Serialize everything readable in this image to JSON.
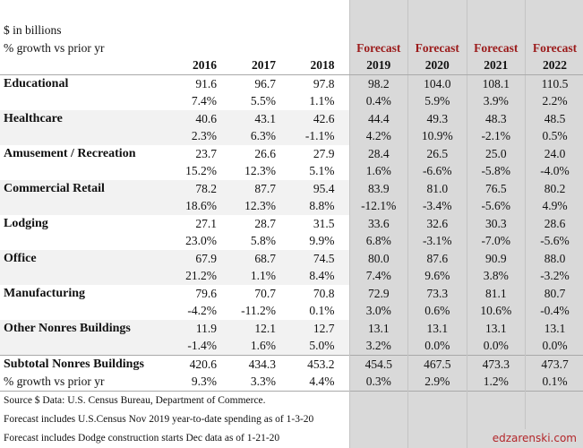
{
  "header": {
    "unit_label": "$ in billions",
    "growth_label": "% growth vs prior yr",
    "forecast_label": "Forecast",
    "years": [
      "2016",
      "2017",
      "2018",
      "2019",
      "2020",
      "2021",
      "2022"
    ],
    "forecast_years": [
      "2019",
      "2020",
      "2021",
      "2022"
    ]
  },
  "categories": [
    {
      "name": "Educational",
      "values": [
        "91.6",
        "96.7",
        "97.8",
        "98.2",
        "104.0",
        "108.1",
        "110.5"
      ],
      "growth": [
        "7.4%",
        "5.5%",
        "1.1%",
        "0.4%",
        "5.9%",
        "3.9%",
        "2.2%"
      ]
    },
    {
      "name": "Healthcare",
      "values": [
        "40.6",
        "43.1",
        "42.6",
        "44.4",
        "49.3",
        "48.3",
        "48.5"
      ],
      "growth": [
        "2.3%",
        "6.3%",
        "-1.1%",
        "4.2%",
        "10.9%",
        "-2.1%",
        "0.5%"
      ]
    },
    {
      "name": "Amusement / Recreation",
      "values": [
        "23.7",
        "26.6",
        "27.9",
        "28.4",
        "26.5",
        "25.0",
        "24.0"
      ],
      "growth": [
        "15.2%",
        "12.3%",
        "5.1%",
        "1.6%",
        "-6.6%",
        "-5.8%",
        "-4.0%"
      ]
    },
    {
      "name": "Commercial Retail",
      "values": [
        "78.2",
        "87.7",
        "95.4",
        "83.9",
        "81.0",
        "76.5",
        "80.2"
      ],
      "growth": [
        "18.6%",
        "12.3%",
        "8.8%",
        "-12.1%",
        "-3.4%",
        "-5.6%",
        "4.9%"
      ]
    },
    {
      "name": "Lodging",
      "values": [
        "27.1",
        "28.7",
        "31.5",
        "33.6",
        "32.6",
        "30.3",
        "28.6"
      ],
      "growth": [
        "23.0%",
        "5.8%",
        "9.9%",
        "6.8%",
        "-3.1%",
        "-7.0%",
        "-5.6%"
      ]
    },
    {
      "name": "Office",
      "values": [
        "67.9",
        "68.7",
        "74.5",
        "80.0",
        "87.6",
        "90.9",
        "88.0"
      ],
      "growth": [
        "21.2%",
        "1.1%",
        "8.4%",
        "7.4%",
        "9.6%",
        "3.8%",
        "-3.2%"
      ]
    },
    {
      "name": "Manufacturing",
      "values": [
        "79.6",
        "70.7",
        "70.8",
        "72.9",
        "73.3",
        "81.1",
        "80.7"
      ],
      "growth": [
        "-4.2%",
        "-11.2%",
        "0.1%",
        "3.0%",
        "0.6%",
        "10.6%",
        "-0.4%"
      ]
    },
    {
      "name": "Other Nonres Buildings",
      "values": [
        "11.9",
        "12.1",
        "12.7",
        "13.1",
        "13.1",
        "13.1",
        "13.1"
      ],
      "growth": [
        "-1.4%",
        "1.6%",
        "5.0%",
        "3.2%",
        "0.0%",
        "0.0%",
        "0.0%"
      ]
    }
  ],
  "subtotal": {
    "name": "Subtotal Nonres Buildings",
    "values": [
      "420.6",
      "434.3",
      "453.2",
      "454.5",
      "467.5",
      "473.3",
      "473.7"
    ],
    "growth_label": "% growth vs prior yr",
    "growth": [
      "9.3%",
      "3.3%",
      "4.4%",
      "0.3%",
      "2.9%",
      "1.2%",
      "0.1%"
    ]
  },
  "footnotes": [
    "Source $ Data: U.S. Census Bureau, Department of Commerce.",
    "Forecast includes U.S.Census Nov 2019 year-to-date spending as of 1-3-20",
    "Forecast includes Dodge construction starts Dec data as of 1-21-20"
  ],
  "watermark": "edzarenski.com",
  "colors": {
    "forecast_red": "#9b1b1b",
    "forecast_bg": "#d9d9d9",
    "alt_row_bg": "#f2f2f2",
    "watermark": "#b3262a"
  }
}
